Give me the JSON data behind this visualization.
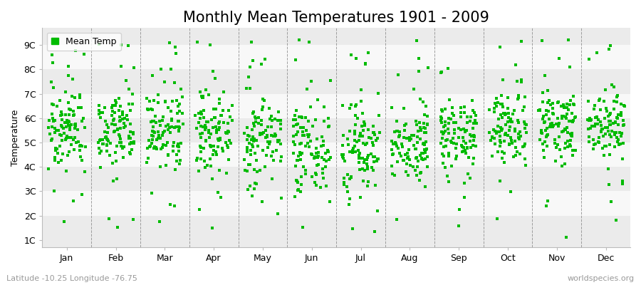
{
  "title": "Monthly Mean Temperatures 1901 - 2009",
  "ylabel": "Temperature",
  "xlabel_bottom_left": "Latitude -10.25 Longitude -76.75",
  "xlabel_bottom_right": "worldspecies.org",
  "months": [
    "Jan",
    "Feb",
    "Mar",
    "Apr",
    "May",
    "Jun",
    "Jul",
    "Aug",
    "Sep",
    "Oct",
    "Nov",
    "Dec"
  ],
  "ytick_labels": [
    "1C",
    "2C",
    "3C",
    "4C",
    "5C",
    "6C",
    "7C",
    "8C",
    "9C"
  ],
  "ytick_values": [
    1,
    2,
    3,
    4,
    5,
    6,
    7,
    8,
    9
  ],
  "ylim": [
    0.7,
    9.7
  ],
  "marker_color": "#00BB00",
  "marker_size": 3,
  "background_color": "#FFFFFF",
  "band_colors": [
    "#EBEBEB",
    "#F8F8F8"
  ],
  "n_years": 109,
  "monthly_means": [
    5.7,
    5.5,
    5.6,
    5.4,
    5.1,
    4.9,
    4.8,
    5.0,
    5.3,
    5.6,
    5.7,
    5.8
  ],
  "monthly_stds": [
    0.85,
    0.85,
    0.85,
    0.75,
    0.85,
    1.0,
    1.0,
    0.8,
    0.7,
    0.7,
    0.7,
    0.7
  ],
  "random_seed": 12,
  "title_fontsize": 15,
  "axis_fontsize": 9,
  "tick_fontsize": 9,
  "legend_fontsize": 9
}
